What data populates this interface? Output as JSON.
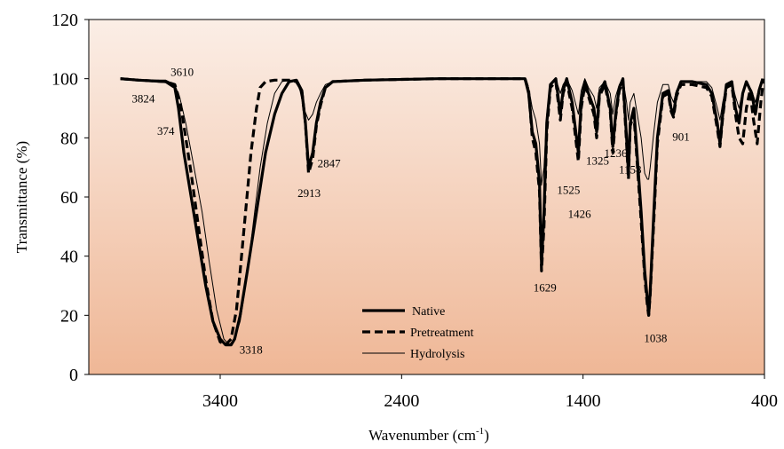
{
  "chart_data": {
    "type": "line",
    "xlabel": "Wavenumber (cm",
    "xlabel_sup": "-1",
    "xlabel_end": ")",
    "ylabel": "Transmittance  (%)",
    "xlim": [
      4000,
      400
    ],
    "ylim": [
      0,
      120
    ],
    "x_reversed": true,
    "x_ticks": [
      3400,
      2400,
      1400,
      400
    ],
    "y_ticks": [
      0,
      20,
      40,
      60,
      80,
      100,
      120
    ],
    "grid": false,
    "background": "gradient peach",
    "legend_position": "bottom-center",
    "series": [
      {
        "name": "Native",
        "style": "solid-thick",
        "color": "#000000",
        "points": [
          [
            3950,
            100
          ],
          [
            3850,
            99.5
          ],
          [
            3700,
            99
          ],
          [
            3650,
            97
          ],
          [
            3630,
            90
          ],
          [
            3600,
            75
          ],
          [
            3560,
            60
          ],
          [
            3520,
            45
          ],
          [
            3480,
            30
          ],
          [
            3440,
            18
          ],
          [
            3400,
            12
          ],
          [
            3370,
            10
          ],
          [
            3340,
            10
          ],
          [
            3320,
            12
          ],
          [
            3290,
            20
          ],
          [
            3250,
            35
          ],
          [
            3200,
            55
          ],
          [
            3150,
            75
          ],
          [
            3100,
            88
          ],
          [
            3060,
            95
          ],
          [
            3020,
            99
          ],
          [
            2980,
            99.5
          ],
          [
            2950,
            96
          ],
          [
            2930,
            85
          ],
          [
            2913,
            70
          ],
          [
            2890,
            75
          ],
          [
            2870,
            85
          ],
          [
            2847,
            92
          ],
          [
            2820,
            97
          ],
          [
            2780,
            99
          ],
          [
            2600,
            99.5
          ],
          [
            2200,
            100
          ],
          [
            1800,
            100
          ],
          [
            1720,
            100
          ],
          [
            1700,
            95
          ],
          [
            1680,
            82
          ],
          [
            1660,
            78
          ],
          [
            1640,
            65
          ],
          [
            1629,
            37
          ],
          [
            1615,
            55
          ],
          [
            1600,
            85
          ],
          [
            1580,
            98
          ],
          [
            1550,
            100
          ],
          [
            1525,
            88
          ],
          [
            1510,
            96
          ],
          [
            1490,
            100
          ],
          [
            1460,
            92
          ],
          [
            1426,
            75
          ],
          [
            1410,
            92
          ],
          [
            1390,
            99
          ],
          [
            1370,
            95
          ],
          [
            1340,
            90
          ],
          [
            1325,
            82
          ],
          [
            1310,
            95
          ],
          [
            1280,
            99
          ],
          [
            1250,
            90
          ],
          [
            1236,
            77
          ],
          [
            1220,
            88
          ],
          [
            1200,
            97
          ],
          [
            1180,
            100
          ],
          [
            1160,
            80
          ],
          [
            1150,
            68
          ],
          [
            1140,
            85
          ],
          [
            1120,
            90
          ],
          [
            1080,
            55
          ],
          [
            1060,
            35
          ],
          [
            1045,
            25
          ],
          [
            1038,
            20
          ],
          [
            1030,
            28
          ],
          [
            1010,
            55
          ],
          [
            990,
            80
          ],
          [
            960,
            95
          ],
          [
            930,
            96
          ],
          [
            915,
            90
          ],
          [
            901,
            88
          ],
          [
            885,
            95
          ],
          [
            860,
            99
          ],
          [
            800,
            99
          ],
          [
            720,
            98
          ],
          [
            690,
            95
          ],
          [
            660,
            85
          ],
          [
            645,
            78
          ],
          [
            630,
            88
          ],
          [
            610,
            98
          ],
          [
            580,
            99
          ],
          [
            560,
            90
          ],
          [
            540,
            85
          ],
          [
            520,
            95
          ],
          [
            500,
            99
          ],
          [
            470,
            95
          ],
          [
            450,
            88
          ],
          [
            430,
            96
          ],
          [
            410,
            100
          ]
        ]
      },
      {
        "name": "Pretreatment",
        "style": "dashed-thick",
        "color": "#000000",
        "points": [
          [
            3950,
            100
          ],
          [
            3850,
            99.5
          ],
          [
            3700,
            99
          ],
          [
            3650,
            98
          ],
          [
            3620,
            92
          ],
          [
            3590,
            80
          ],
          [
            3560,
            68
          ],
          [
            3520,
            50
          ],
          [
            3480,
            32
          ],
          [
            3440,
            18
          ],
          [
            3400,
            11
          ],
          [
            3370,
            10
          ],
          [
            3340,
            12
          ],
          [
            3310,
            22
          ],
          [
            3290,
            35
          ],
          [
            3260,
            55
          ],
          [
            3230,
            75
          ],
          [
            3200,
            90
          ],
          [
            3180,
            97
          ],
          [
            3150,
            99
          ],
          [
            3100,
            99.5
          ],
          [
            3020,
            99.5
          ],
          [
            2980,
            99
          ],
          [
            2950,
            96
          ],
          [
            2930,
            85
          ],
          [
            2913,
            68
          ],
          [
            2890,
            73
          ],
          [
            2870,
            84
          ],
          [
            2847,
            91
          ],
          [
            2820,
            97
          ],
          [
            2780,
            99
          ],
          [
            2600,
            99.5
          ],
          [
            2200,
            100
          ],
          [
            1800,
            100
          ],
          [
            1720,
            100
          ],
          [
            1700,
            96
          ],
          [
            1680,
            80
          ],
          [
            1660,
            75
          ],
          [
            1640,
            62
          ],
          [
            1629,
            35
          ],
          [
            1615,
            50
          ],
          [
            1600,
            82
          ],
          [
            1580,
            97
          ],
          [
            1550,
            99
          ],
          [
            1525,
            86
          ],
          [
            1510,
            95
          ],
          [
            1490,
            99
          ],
          [
            1460,
            90
          ],
          [
            1426,
            72
          ],
          [
            1410,
            90
          ],
          [
            1390,
            98
          ],
          [
            1370,
            94
          ],
          [
            1340,
            88
          ],
          [
            1325,
            80
          ],
          [
            1310,
            94
          ],
          [
            1280,
            98
          ],
          [
            1250,
            89
          ],
          [
            1236,
            75
          ],
          [
            1220,
            87
          ],
          [
            1200,
            96
          ],
          [
            1180,
            99
          ],
          [
            1160,
            78
          ],
          [
            1150,
            66
          ],
          [
            1140,
            84
          ],
          [
            1120,
            88
          ],
          [
            1080,
            52
          ],
          [
            1060,
            33
          ],
          [
            1045,
            23
          ],
          [
            1038,
            20
          ],
          [
            1030,
            27
          ],
          [
            1010,
            52
          ],
          [
            990,
            78
          ],
          [
            960,
            94
          ],
          [
            930,
            95
          ],
          [
            915,
            89
          ],
          [
            901,
            87
          ],
          [
            885,
            94
          ],
          [
            860,
            98
          ],
          [
            800,
            98
          ],
          [
            720,
            97
          ],
          [
            690,
            94
          ],
          [
            660,
            83
          ],
          [
            645,
            77
          ],
          [
            630,
            87
          ],
          [
            610,
            97
          ],
          [
            580,
            98
          ],
          [
            560,
            88
          ],
          [
            540,
            80
          ],
          [
            520,
            78
          ],
          [
            500,
            90
          ],
          [
            480,
            96
          ],
          [
            460,
            86
          ],
          [
            440,
            78
          ],
          [
            420,
            92
          ],
          [
            405,
            100
          ]
        ]
      },
      {
        "name": "Hydrolysis",
        "style": "thin",
        "color": "#000000",
        "points": [
          [
            3950,
            100
          ],
          [
            3850,
            99.5
          ],
          [
            3700,
            99.5
          ],
          [
            3650,
            98
          ],
          [
            3620,
            93
          ],
          [
            3590,
            85
          ],
          [
            3550,
            72
          ],
          [
            3500,
            55
          ],
          [
            3460,
            38
          ],
          [
            3420,
            22
          ],
          [
            3380,
            12
          ],
          [
            3350,
            10
          ],
          [
            3320,
            12
          ],
          [
            3290,
            18
          ],
          [
            3260,
            30
          ],
          [
            3220,
            50
          ],
          [
            3180,
            70
          ],
          [
            3140,
            85
          ],
          [
            3100,
            95
          ],
          [
            3060,
            99
          ],
          [
            3020,
            99.5
          ],
          [
            2980,
            99
          ],
          [
            2960,
            96
          ],
          [
            2940,
            90
          ],
          [
            2913,
            86
          ],
          [
            2890,
            88
          ],
          [
            2870,
            92
          ],
          [
            2847,
            95
          ],
          [
            2820,
            98
          ],
          [
            2780,
            99
          ],
          [
            2600,
            99.5
          ],
          [
            2200,
            100
          ],
          [
            1800,
            100
          ],
          [
            1720,
            100
          ],
          [
            1700,
            97
          ],
          [
            1680,
            90
          ],
          [
            1660,
            86
          ],
          [
            1640,
            78
          ],
          [
            1629,
            64
          ],
          [
            1615,
            70
          ],
          [
            1600,
            88
          ],
          [
            1580,
            98
          ],
          [
            1550,
            100
          ],
          [
            1525,
            95
          ],
          [
            1510,
            98
          ],
          [
            1490,
            100
          ],
          [
            1460,
            96
          ],
          [
            1426,
            88
          ],
          [
            1410,
            96
          ],
          [
            1390,
            100
          ],
          [
            1370,
            97
          ],
          [
            1340,
            94
          ],
          [
            1325,
            90
          ],
          [
            1310,
            97
          ],
          [
            1280,
            99
          ],
          [
            1250,
            95
          ],
          [
            1236,
            88
          ],
          [
            1220,
            94
          ],
          [
            1200,
            98
          ],
          [
            1180,
            100
          ],
          [
            1160,
            92
          ],
          [
            1150,
            86
          ],
          [
            1140,
            92
          ],
          [
            1120,
            95
          ],
          [
            1080,
            80
          ],
          [
            1060,
            68
          ],
          [
            1045,
            66
          ],
          [
            1038,
            66
          ],
          [
            1030,
            70
          ],
          [
            1010,
            82
          ],
          [
            990,
            92
          ],
          [
            960,
            98
          ],
          [
            930,
            98
          ],
          [
            915,
            94
          ],
          [
            901,
            92
          ],
          [
            885,
            96
          ],
          [
            860,
            99
          ],
          [
            800,
            99
          ],
          [
            720,
            99
          ],
          [
            690,
            97
          ],
          [
            660,
            90
          ],
          [
            645,
            86
          ],
          [
            630,
            92
          ],
          [
            610,
            98
          ],
          [
            580,
            99
          ],
          [
            560,
            94
          ],
          [
            540,
            90
          ],
          [
            520,
            96
          ],
          [
            500,
            99
          ],
          [
            470,
            96
          ],
          [
            450,
            92
          ],
          [
            430,
            97
          ],
          [
            410,
            100
          ]
        ]
      }
    ],
    "annotations": [
      {
        "text": "3824",
        "x": 3824,
        "y": 92
      },
      {
        "text": "3610",
        "x": 3610,
        "y": 101
      },
      {
        "text": "374",
        "x": 3700,
        "y": 81
      },
      {
        "text": "3318",
        "x": 3230,
        "y": 7
      },
      {
        "text": "2913",
        "x": 2910,
        "y": 60
      },
      {
        "text": "2847",
        "x": 2800,
        "y": 70
      },
      {
        "text": "1629",
        "x": 1610,
        "y": 28
      },
      {
        "text": "1525",
        "x": 1480,
        "y": 61
      },
      {
        "text": "1426",
        "x": 1420,
        "y": 53
      },
      {
        "text": "1325",
        "x": 1320,
        "y": 71
      },
      {
        "text": "1236",
        "x": 1220,
        "y": 73.5
      },
      {
        "text": "1158",
        "x": 1140,
        "y": 68
      },
      {
        "text": "1038",
        "x": 1000,
        "y": 11
      },
      {
        "text": "901",
        "x": 860,
        "y": 79
      }
    ]
  }
}
